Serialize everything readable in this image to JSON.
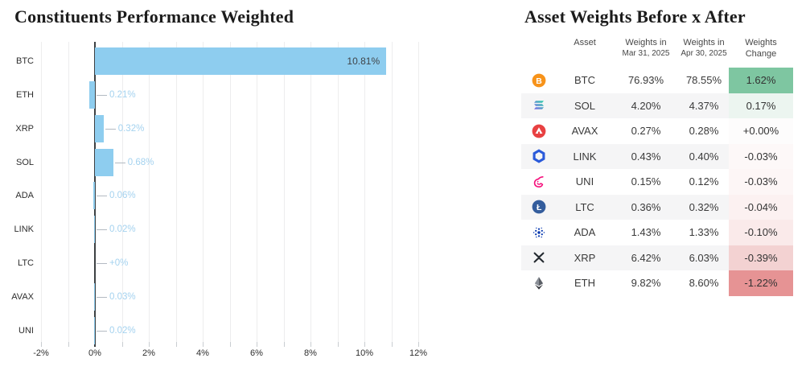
{
  "left_panel": {
    "title": "Constituents Performance Weighted"
  },
  "chart_data": {
    "type": "bar",
    "orientation": "horizontal",
    "title": "Constituents Performance Weighted",
    "categories": [
      "BTC",
      "ETH",
      "XRP",
      "SOL",
      "ADA",
      "LINK",
      "LTC",
      "AVAX",
      "UNI"
    ],
    "values": [
      10.81,
      -0.21,
      0.32,
      0.68,
      -0.06,
      -0.02,
      0,
      -0.03,
      -0.02
    ],
    "bar_labels": [
      "10.81%",
      "0.21%",
      "0.32%",
      "0.68%",
      "0.06%",
      "0.02%",
      "+0%",
      "0.03%",
      "0.02%"
    ],
    "x_tick_labels": [
      "-2%",
      "0%",
      "2%",
      "4%",
      "6%",
      "8%",
      "10%",
      "12%"
    ],
    "xlim": [
      -2,
      12.5
    ],
    "grid": true,
    "legend": "none",
    "colors": {
      "bar": "#8ecdef",
      "label_outside": "#a4d2ef",
      "label_inside": "#3f4347",
      "leader_line": "#b3bac2",
      "zero_line": "#3c4043",
      "gridline": "#ededee"
    }
  },
  "right_panel": {
    "title": "Asset Weights Before x After",
    "table": {
      "headers": {
        "asset": "Asset",
        "before_line1": "Weights in",
        "before_line2": "Mar 31, 2025",
        "after_line1": "Weights in",
        "after_line2": "Apr 30, 2025",
        "change_line1": "Weights",
        "change_line2": "Change"
      },
      "rows": [
        {
          "asset": "BTC",
          "icon": "btc-icon",
          "before": "76.93%",
          "after": "78.55%",
          "change": "1.62%",
          "change_bg": "#7ec6a1"
        },
        {
          "asset": "SOL",
          "icon": "sol-icon",
          "before": "4.20%",
          "after": "4.37%",
          "change": "0.17%",
          "change_bg": "#ecf5f0"
        },
        {
          "asset": "AVAX",
          "icon": "avax-icon",
          "before": "0.27%",
          "after": "0.28%",
          "change": "+0.00%",
          "change_bg": "#fdfcfc"
        },
        {
          "asset": "LINK",
          "icon": "link-icon",
          "before": "0.43%",
          "after": "0.40%",
          "change": "-0.03%",
          "change_bg": "#fdf8f8"
        },
        {
          "asset": "UNI",
          "icon": "uni-icon",
          "before": "0.15%",
          "after": "0.12%",
          "change": "-0.03%",
          "change_bg": "#fdf6f6"
        },
        {
          "asset": "LTC",
          "icon": "ltc-icon",
          "before": "0.36%",
          "after": "0.32%",
          "change": "-0.04%",
          "change_bg": "#fcf1f1"
        },
        {
          "asset": "ADA",
          "icon": "ada-icon",
          "before": "1.43%",
          "after": "1.33%",
          "change": "-0.10%",
          "change_bg": "#faeaea"
        },
        {
          "asset": "XRP",
          "icon": "xrp-icon",
          "before": "6.42%",
          "after": "6.03%",
          "change": "-0.39%",
          "change_bg": "#f3d2d2"
        },
        {
          "asset": "ETH",
          "icon": "eth-icon",
          "before": "9.82%",
          "after": "8.60%",
          "change": "-1.22%",
          "change_bg": "#e69394"
        }
      ],
      "stripe_color": "#f5f5f6"
    }
  }
}
